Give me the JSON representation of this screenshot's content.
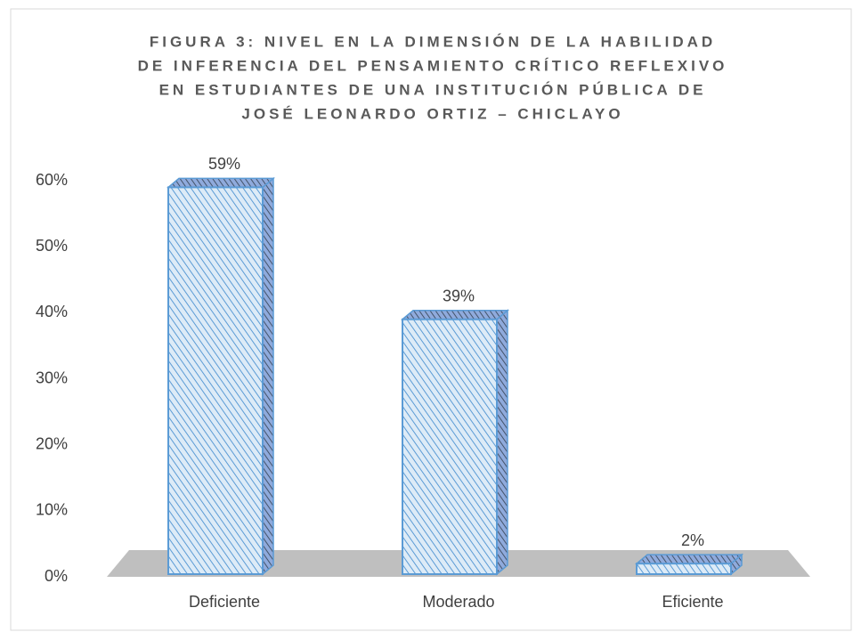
{
  "chart_data": {
    "type": "bar3d",
    "title": [
      "FIGURA 3: NIVEL EN LA DIMENSIÓN DE LA HABILIDAD",
      "DE INFERENCIA DEL PENSAMIENTO CRÍTICO REFLEXIVO",
      "EN ESTUDIANTES DE UNA INSTITUCIÓN PÚBLICA DE",
      "JOSÉ LEONARDO ORTIZ – CHICLAYO"
    ],
    "categories": [
      "Deficiente",
      "Moderado",
      "Eficiente"
    ],
    "values": [
      59,
      39,
      2
    ],
    "value_labels": [
      "59%",
      "39%",
      "2%"
    ],
    "color": "#5b9bd5",
    "ylim": [
      0,
      60
    ],
    "yticks": [
      {
        "value": 0,
        "label": "0%"
      },
      {
        "value": 10,
        "label": "10%"
      },
      {
        "value": 20,
        "label": "20%"
      },
      {
        "value": 30,
        "label": "30%"
      },
      {
        "value": 40,
        "label": "40%"
      },
      {
        "value": 50,
        "label": "50%"
      },
      {
        "value": 60,
        "label": "60%"
      }
    ],
    "grid": false
  }
}
